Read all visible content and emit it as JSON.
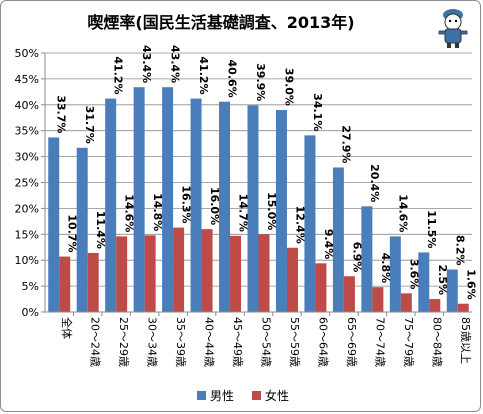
{
  "chart_data": {
    "type": "bar",
    "title": "喫煙率(国民生活基礎調査、2013年)",
    "xlabel": "",
    "ylabel": "",
    "ylim": [
      0,
      50
    ],
    "yticks": [
      "0%",
      "5%",
      "10%",
      "15%",
      "20%",
      "25%",
      "30%",
      "35%",
      "40%",
      "45%",
      "50%"
    ],
    "grid": true,
    "legend": "bottom",
    "categories": [
      "全体",
      "20～24歳",
      "25～29歳",
      "30～34歳",
      "35～39歳",
      "40～44歳",
      "45～49歳",
      "50～54歳",
      "55～59歳",
      "60～64歳",
      "65～69歳",
      "70～74歳",
      "75～79歳",
      "80～84歳",
      "85歳以上"
    ],
    "series": [
      {
        "name": "男性",
        "color": "#4a7ebb",
        "values": [
          33.7,
          31.7,
          41.2,
          43.4,
          43.4,
          41.2,
          40.6,
          39.9,
          39.0,
          34.1,
          27.9,
          20.4,
          14.6,
          11.5,
          8.2
        ],
        "labels": [
          "33.7%",
          "31.7%",
          "41.2%",
          "43.4%",
          "43.4%",
          "41.2%",
          "40.6%",
          "39.9%",
          "39.0%",
          "34.1%",
          "27.9%",
          "20.4%",
          "14.6%",
          "11.5%",
          "8.2%"
        ]
      },
      {
        "name": "女性",
        "color": "#be4b48",
        "values": [
          10.7,
          11.4,
          14.6,
          14.8,
          16.3,
          16.0,
          14.7,
          15.0,
          12.4,
          9.4,
          6.9,
          4.8,
          3.6,
          2.5,
          1.6
        ],
        "labels": [
          "10.7%",
          "11.4%",
          "14.6%",
          "14.8%",
          "16.3%",
          "16.0%",
          "14.7%",
          "15.0%",
          "12.4%",
          "9.4%",
          "6.9%",
          "4.8%",
          "3.6%",
          "2.5%",
          "1.6%"
        ]
      }
    ]
  },
  "mascot": {
    "icon": "mascot-character-icon"
  }
}
